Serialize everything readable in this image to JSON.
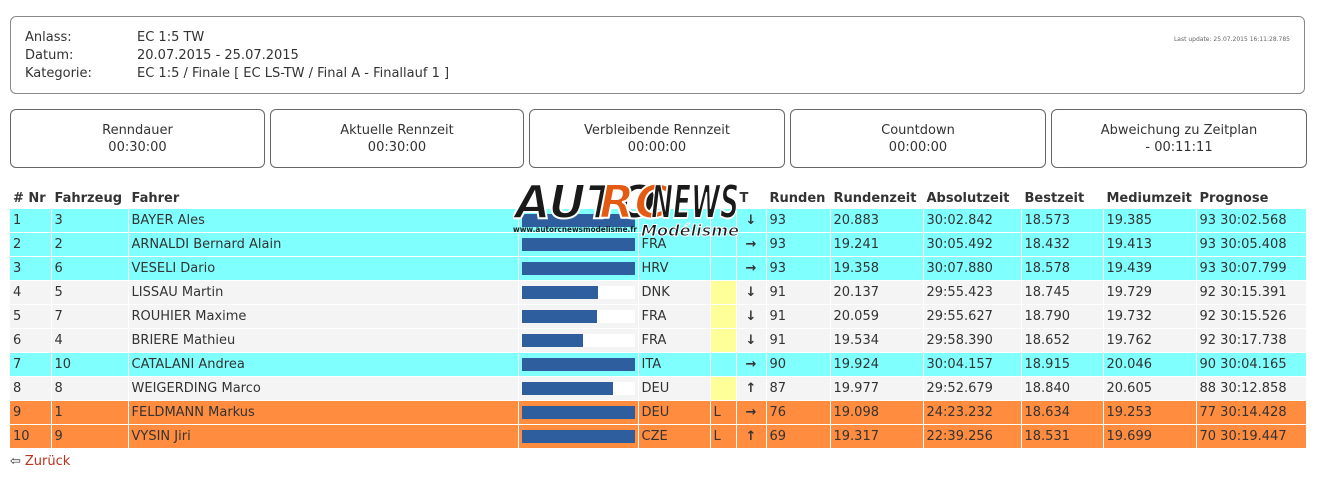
{
  "header": {
    "anlass_label": "Anlass:",
    "anlass_value": "EC 1:5 TW",
    "datum_label": "Datum:",
    "datum_value": "20.07.2015 - 25.07.2015",
    "kategorie_label": "Kategorie:",
    "kategorie_value": "EC 1:5 / Finale [ EC LS-TW / Final A - Finallauf 1 ]",
    "last_update": "Last update: 25.07.2015 16:11:28.785"
  },
  "timers": [
    {
      "label": "Renndauer",
      "value": "00:30:00"
    },
    {
      "label": "Aktuelle Rennzeit",
      "value": "00:30:00"
    },
    {
      "label": "Verbleibende Rennzeit",
      "value": "00:00:00"
    },
    {
      "label": "Countdown",
      "value": "00:00:00"
    },
    {
      "label": "Abweichung zu Zeitplan",
      "value": "- 00:11:11"
    }
  ],
  "table": {
    "headers": [
      "# Nr",
      "Fahrzeug",
      "Fahrer",
      "",
      "",
      "",
      "T",
      "Runden",
      "Rundenzeit",
      "Absolutzeit",
      "Bestzeit",
      "Mediumzeit",
      "Prognose"
    ],
    "rows": [
      {
        "pos": "1",
        "nr": "3",
        "driver": "BAYER Ales",
        "progress": 1.0,
        "country": "",
        "flag": "",
        "arrow": "↓",
        "laps": "93",
        "lap_time": "20.883",
        "abs_time": "30:02.842",
        "best": "18.573",
        "medium": "19.385",
        "prognose": "93 30:02.568",
        "color": "cyan"
      },
      {
        "pos": "2",
        "nr": "2",
        "driver": "ARNALDI Bernard Alain",
        "progress": 1.0,
        "country": "FRA",
        "flag": "",
        "arrow": "→",
        "laps": "93",
        "lap_time": "19.241",
        "abs_time": "30:05.492",
        "best": "18.432",
        "medium": "19.413",
        "prognose": "93 30:05.408",
        "color": "cyan"
      },
      {
        "pos": "3",
        "nr": "6",
        "driver": "VESELI Dario",
        "progress": 1.0,
        "country": "HRV",
        "flag": "",
        "arrow": "→",
        "laps": "93",
        "lap_time": "19.358",
        "abs_time": "30:07.880",
        "best": "18.578",
        "medium": "19.439",
        "prognose": "93 30:07.799",
        "color": "cyan"
      },
      {
        "pos": "4",
        "nr": "5",
        "driver": "LISSAU Martin",
        "progress": 0.68,
        "country": "DNK",
        "flag": "yellow",
        "arrow": "↓",
        "laps": "91",
        "lap_time": "20.137",
        "abs_time": "29:55.423",
        "best": "18.745",
        "medium": "19.729",
        "prognose": "92 30:15.391",
        "color": "white"
      },
      {
        "pos": "5",
        "nr": "7",
        "driver": "ROUHIER Maxime",
        "progress": 0.67,
        "country": "FRA",
        "flag": "yellow",
        "arrow": "↓",
        "laps": "91",
        "lap_time": "20.059",
        "abs_time": "29:55.627",
        "best": "18.790",
        "medium": "19.732",
        "prognose": "92 30:15.526",
        "color": "white"
      },
      {
        "pos": "6",
        "nr": "4",
        "driver": "BRIERE Mathieu",
        "progress": 0.54,
        "country": "FRA",
        "flag": "yellow",
        "arrow": "↓",
        "laps": "91",
        "lap_time": "19.534",
        "abs_time": "29:58.390",
        "best": "18.652",
        "medium": "19.762",
        "prognose": "92 30:17.738",
        "color": "white"
      },
      {
        "pos": "7",
        "nr": "10",
        "driver": "CATALANI Andrea",
        "progress": 1.0,
        "country": "ITA",
        "flag": "",
        "arrow": "→",
        "laps": "90",
        "lap_time": "19.924",
        "abs_time": "30:04.157",
        "best": "18.915",
        "medium": "20.046",
        "prognose": "90 30:04.165",
        "color": "cyan"
      },
      {
        "pos": "8",
        "nr": "8",
        "driver": "WEIGERDING Marco",
        "progress": 0.81,
        "country": "DEU",
        "flag": "yellow",
        "arrow": "↑",
        "laps": "87",
        "lap_time": "19.977",
        "abs_time": "29:52.679",
        "best": "18.840",
        "medium": "20.605",
        "prognose": "88 30:12.858",
        "color": "white"
      },
      {
        "pos": "9",
        "nr": "1",
        "driver": "FELDMANN Markus",
        "progress": 1.0,
        "country": "DEU",
        "flag": "L",
        "arrow": "→",
        "laps": "76",
        "lap_time": "19.098",
        "abs_time": "24:23.232",
        "best": "18.634",
        "medium": "19.253",
        "prognose": "77 30:14.428",
        "color": "orange"
      },
      {
        "pos": "10",
        "nr": "9",
        "driver": "VYSIN Jiri",
        "progress": 1.0,
        "country": "CZE",
        "flag": "L",
        "arrow": "↑",
        "laps": "69",
        "lap_time": "19.317",
        "abs_time": "22:39.256",
        "best": "18.531",
        "medium": "19.699",
        "prognose": "70 30:19.447",
        "color": "orange"
      }
    ]
  },
  "logo": {
    "text_auto": "AUTO",
    "text_rc": "RC",
    "text_news": "NEWS",
    "url": "www.autorcnewsmodelisme.fr",
    "sub": "Modélisme"
  },
  "back": {
    "icon": "back-arrow-icon",
    "label": "Zurück"
  },
  "colors": {
    "cyan": "#80ffff",
    "white": "#f4f4f4",
    "orange": "#ff8c3f",
    "bar": "#2f5e9e",
    "flag_yellow": "#ffff99"
  }
}
